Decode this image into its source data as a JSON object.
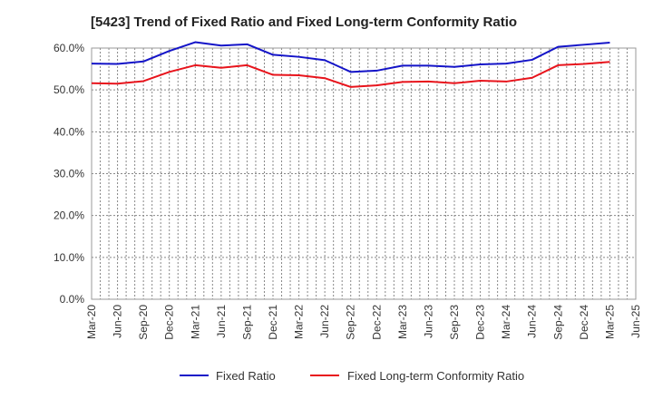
{
  "chart_data": {
    "type": "line",
    "title": "[5423]  Trend of Fixed Ratio and Fixed Long-term Conformity Ratio",
    "xlabel": "",
    "ylabel": "",
    "ylim": [
      0,
      60
    ],
    "ytick_format": "percent_1dp",
    "yticks": [
      "0.0%",
      "10.0%",
      "20.0%",
      "30.0%",
      "40.0%",
      "50.0%",
      "60.0%"
    ],
    "categories": [
      "Mar-20",
      "Jun-20",
      "Sep-20",
      "Dec-20",
      "Mar-21",
      "Jun-21",
      "Sep-21",
      "Dec-21",
      "Mar-22",
      "Jun-22",
      "Sep-22",
      "Dec-22",
      "Mar-23",
      "Jun-23",
      "Sep-23",
      "Dec-23",
      "Mar-24",
      "Jun-24",
      "Sep-24",
      "Dec-24",
      "Mar-25",
      "Jun-25"
    ],
    "grid": true,
    "legend_position": "bottom-center",
    "series": [
      {
        "name": "Fixed Ratio",
        "color": "#1414c8",
        "values": [
          56.3,
          56.2,
          56.8,
          59.3,
          61.4,
          60.6,
          60.9,
          58.4,
          57.9,
          57.1,
          54.3,
          54.6,
          55.8,
          55.8,
          55.5,
          56.1,
          56.3,
          57.2,
          60.3,
          60.8,
          61.3,
          null
        ]
      },
      {
        "name": "Fixed Long-term Conformity Ratio",
        "color": "#e8141c",
        "values": [
          51.6,
          51.5,
          52.1,
          54.3,
          55.9,
          55.3,
          55.9,
          53.6,
          53.5,
          52.8,
          50.7,
          51.1,
          51.9,
          52.0,
          51.6,
          52.2,
          52.0,
          52.9,
          55.9,
          56.2,
          56.7,
          null
        ]
      }
    ]
  }
}
